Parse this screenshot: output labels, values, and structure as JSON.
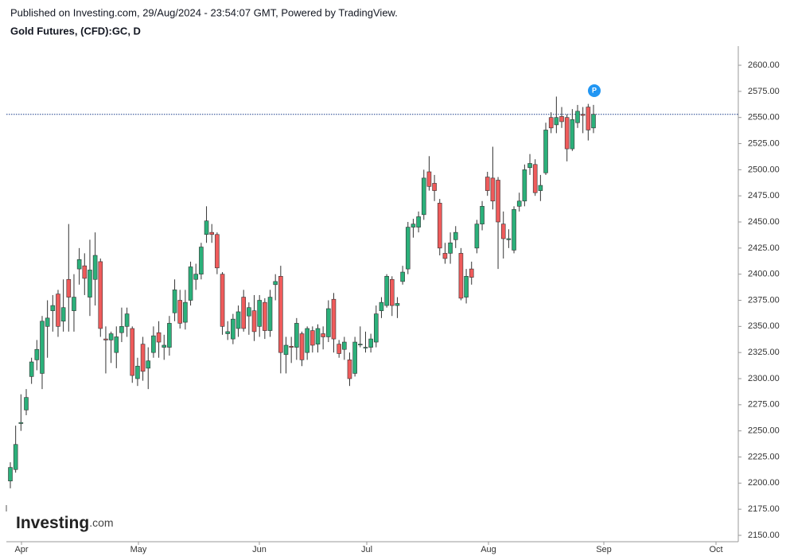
{
  "header": {
    "published": "Published on Investing.com, 29/Aug/2024 - 23:54:07 GMT, Powered by TradingView.",
    "symbol": "Gold Futures, (CFD):GC, D"
  },
  "logo": {
    "brand": "Investing",
    "suffix": ".com"
  },
  "chart_data": {
    "type": "candlestick",
    "up_color": "#2bb07a",
    "down_color": "#ef5b5b",
    "x_labels": [
      "Apr",
      "May",
      "Jun",
      "Jul",
      "Aug",
      "Sep",
      "Oct"
    ],
    "open": [
      2202,
      2213,
      2257,
      2270,
      2302,
      2318,
      2305,
      2350,
      2365,
      2381,
      2355,
      2395,
      2365,
      2405,
      2408,
      2378,
      2395,
      2412,
      2338,
      2337,
      2325,
      2344,
      2350,
      2348,
      2300,
      2333,
      2310,
      2325,
      2344,
      2330,
      2330,
      2363,
      2375,
      2354,
      2375,
      2395,
      2400,
      2438,
      2440,
      2438,
      2400,
      2343,
      2338,
      2348,
      2378,
      2360,
      2365,
      2350,
      2373,
      2346,
      2390,
      2398,
      2323,
      2331,
      2330,
      2343,
      2325,
      2346,
      2333,
      2343,
      2340,
      2376,
      2333,
      2328,
      2318,
      2305,
      2333,
      2330,
      2330,
      2335,
      2365,
      2370,
      2395,
      2370,
      2393,
      2405,
      2445,
      2445,
      2457,
      2498,
      2487,
      2468,
      2420,
      2420,
      2433,
      2420,
      2378,
      2405,
      2425,
      2448,
      2493,
      2492,
      2490,
      2448,
      2433,
      2423,
      2465,
      2470,
      2502,
      2505,
      2480,
      2497,
      2550,
      2543,
      2551,
      2550,
      2520,
      2545,
      2553,
      2560,
      2540
    ],
    "high": [
      2220,
      2255,
      2285,
      2290,
      2320,
      2337,
      2360,
      2375,
      2380,
      2385,
      2395,
      2448,
      2400,
      2425,
      2420,
      2433,
      2440,
      2415,
      2350,
      2345,
      2350,
      2368,
      2368,
      2350,
      2320,
      2340,
      2330,
      2350,
      2355,
      2342,
      2360,
      2395,
      2385,
      2385,
      2412,
      2410,
      2430,
      2465,
      2448,
      2440,
      2402,
      2355,
      2362,
      2370,
      2385,
      2373,
      2380,
      2380,
      2377,
      2385,
      2400,
      2408,
      2340,
      2340,
      2358,
      2345,
      2350,
      2350,
      2352,
      2350,
      2375,
      2382,
      2337,
      2340,
      2325,
      2340,
      2350,
      2345,
      2343,
      2370,
      2378,
      2400,
      2398,
      2378,
      2408,
      2450,
      2453,
      2460,
      2500,
      2513,
      2495,
      2472,
      2430,
      2440,
      2446,
      2425,
      2405,
      2412,
      2452,
      2470,
      2498,
      2522,
      2493,
      2460,
      2443,
      2465,
      2478,
      2505,
      2515,
      2510,
      2495,
      2545,
      2555,
      2570,
      2560,
      2553,
      2558,
      2562,
      2560,
      2563,
      2562
    ],
    "low": [
      2195,
      2210,
      2250,
      2265,
      2295,
      2308,
      2290,
      2320,
      2345,
      2340,
      2345,
      2345,
      2345,
      2390,
      2380,
      2360,
      2370,
      2340,
      2305,
      2315,
      2310,
      2335,
      2340,
      2296,
      2293,
      2298,
      2290,
      2320,
      2320,
      2318,
      2322,
      2355,
      2348,
      2347,
      2370,
      2385,
      2395,
      2430,
      2430,
      2400,
      2342,
      2337,
      2333,
      2340,
      2345,
      2342,
      2336,
      2340,
      2338,
      2340,
      2375,
      2305,
      2305,
      2315,
      2318,
      2312,
      2318,
      2325,
      2325,
      2328,
      2335,
      2325,
      2320,
      2318,
      2293,
      2302,
      2330,
      2325,
      2325,
      2330,
      2358,
      2368,
      2360,
      2358,
      2390,
      2400,
      2435,
      2440,
      2452,
      2480,
      2470,
      2418,
      2410,
      2410,
      2425,
      2375,
      2372,
      2390,
      2420,
      2442,
      2475,
      2462,
      2405,
      2415,
      2425,
      2420,
      2460,
      2465,
      2495,
      2475,
      2470,
      2495,
      2535,
      2535,
      2540,
      2508,
      2518,
      2540,
      2535,
      2528,
      2535
    ],
    "close": [
      2215,
      2237,
      2258,
      2282,
      2316,
      2328,
      2355,
      2358,
      2370,
      2350,
      2368,
      2378,
      2378,
      2414,
      2396,
      2404,
      2418,
      2348,
      2337,
      2343,
      2340,
      2350,
      2362,
      2303,
      2312,
      2307,
      2317,
      2341,
      2335,
      2332,
      2353,
      2385,
      2353,
      2373,
      2407,
      2400,
      2426,
      2451,
      2438,
      2406,
      2350,
      2345,
      2357,
      2364,
      2348,
      2368,
      2345,
      2375,
      2346,
      2378,
      2393,
      2325,
      2332,
      2330,
      2353,
      2318,
      2348,
      2332,
      2348,
      2340,
      2367,
      2338,
      2324,
      2335,
      2300,
      2335,
      2333,
      2330,
      2338,
      2362,
      2373,
      2398,
      2370,
      2372,
      2402,
      2445,
      2448,
      2455,
      2492,
      2484,
      2480,
      2425,
      2415,
      2430,
      2440,
      2377,
      2398,
      2397,
      2448,
      2465,
      2480,
      2470,
      2450,
      2434,
      2434,
      2462,
      2470,
      2500,
      2506,
      2478,
      2485,
      2538,
      2540,
      2550,
      2546,
      2520,
      2548,
      2556,
      2552,
      2538,
      2553
    ],
    "price_line": 2553,
    "marker_label": "P",
    "ylim": [
      2143.9,
      2618.3
    ],
    "yticks": [
      {
        "value": 2150,
        "label": "2150.00"
      },
      {
        "value": 2175,
        "label": "2175.00"
      },
      {
        "value": 2200,
        "label": "2200.00"
      },
      {
        "value": 2225,
        "label": "2225.00"
      },
      {
        "value": 2250,
        "label": "2250.00"
      },
      {
        "value": 2275,
        "label": "2275.00"
      },
      {
        "value": 2300,
        "label": "2300.00"
      },
      {
        "value": 2325,
        "label": "2325.00"
      },
      {
        "value": 2350,
        "label": "2350.00"
      },
      {
        "value": 2375,
        "label": "2375.00"
      },
      {
        "value": 2400,
        "label": "2400.00"
      },
      {
        "value": 2425,
        "label": "2425.00"
      },
      {
        "value": 2450,
        "label": "2450.00"
      },
      {
        "value": 2475,
        "label": "2475.00"
      },
      {
        "value": 2500,
        "label": "2500.00"
      },
      {
        "value": 2525,
        "label": "2525.00"
      },
      {
        "value": 2550,
        "label": "2550.00"
      },
      {
        "value": 2575,
        "label": "2575.00"
      },
      {
        "value": 2600,
        "label": "2600.00"
      }
    ]
  }
}
